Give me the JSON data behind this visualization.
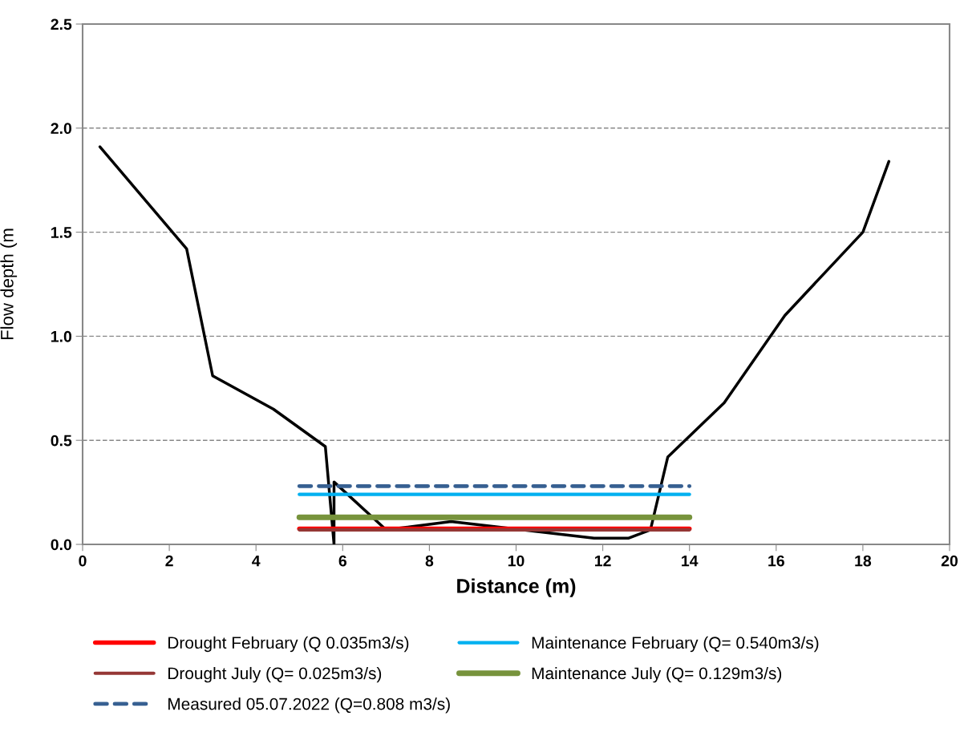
{
  "chart_data": {
    "type": "line",
    "xlabel": "Distance (m)",
    "ylabel": "Flow depth (m",
    "xlim": [
      0,
      20
    ],
    "xticks": [
      0,
      2,
      4,
      6,
      8,
      10,
      12,
      14,
      16,
      18,
      20
    ],
    "ylim": [
      0,
      2.5
    ],
    "yticks": [
      {
        "value": 0,
        "label": "0.0"
      },
      {
        "value": 0.5,
        "label": "0.5"
      },
      {
        "value": 1,
        "label": "1.0"
      },
      {
        "value": 1.5,
        "label": "1.5"
      },
      {
        "value": 2,
        "label": "2.0"
      },
      {
        "value": 2.5,
        "label": "2.5"
      }
    ],
    "grid": "y",
    "legend": "bottom",
    "marker": "none",
    "series": [
      {
        "color": "#000000",
        "x": [
          0.4,
          2.4,
          3.0,
          4.4,
          5.6,
          5.8,
          5.8,
          7.0,
          8.5,
          11.8,
          12.6,
          13.1,
          13.5,
          14.8,
          16.2,
          18.0,
          18.6
        ],
        "values": [
          1.91,
          1.42,
          0.81,
          0.65,
          0.47,
          0.0,
          0.3,
          0.07,
          0.11,
          0.03,
          0.03,
          0.07,
          0.42,
          0.68,
          1.1,
          1.5,
          1.84
        ]
      },
      {
        "name": "Drought February (Q 0.035m3/s)",
        "color": "#ff0000",
        "x": [
          5,
          14
        ],
        "values": [
          0.075,
          0.075
        ]
      },
      {
        "name": "Drought July (Q= 0.025m3/s)",
        "color": "#953735",
        "x": [
          5,
          14
        ],
        "values": [
          0.07,
          0.07
        ]
      },
      {
        "name": "Measured 05.07.2022 (Q=0.808 m3/s)",
        "color": "#376092",
        "line_style": "dashed",
        "x": [
          5,
          14
        ],
        "values": [
          0.28,
          0.28
        ]
      },
      {
        "name": "Maintenance February (Q= 0.540m3/s)",
        "color": "#00b0f0",
        "x": [
          5,
          14
        ],
        "values": [
          0.24,
          0.24
        ]
      },
      {
        "name": "Maintenance July (Q= 0.129m3/s)",
        "color": "#77933c",
        "x": [
          5,
          14
        ],
        "values": [
          0.13,
          0.13
        ]
      }
    ]
  }
}
